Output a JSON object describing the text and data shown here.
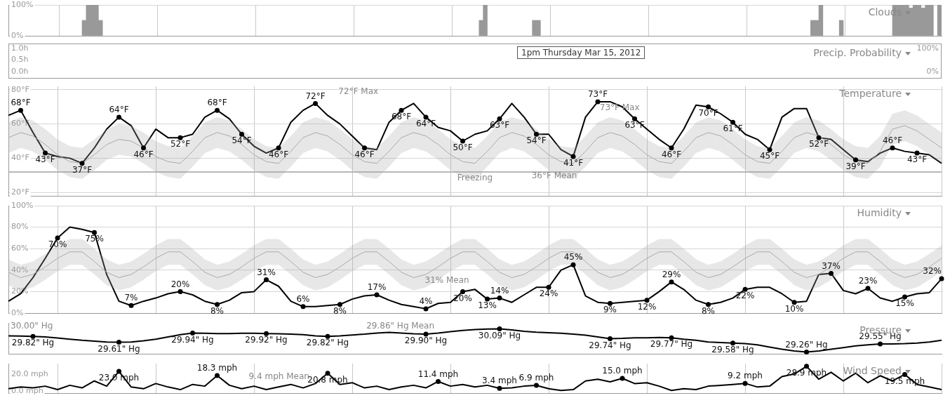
{
  "chart_data": [
    {
      "type": "bar",
      "title": "Clouds",
      "categories": [
        null,
        null,
        null,
        null,
        null,
        null,
        null,
        null,
        null,
        null,
        null,
        null,
        null,
        null,
        null,
        null,
        null,
        null,
        null,
        null,
        null,
        null,
        null,
        null,
        null,
        null,
        null,
        null,
        null,
        null,
        null,
        null,
        null,
        null,
        null,
        null,
        null,
        null,
        null,
        null,
        null,
        null,
        null,
        null,
        null,
        null,
        null,
        null,
        null,
        null,
        null,
        null,
        null,
        null,
        null,
        null,
        null,
        null,
        null,
        null,
        null,
        null,
        null,
        null,
        null,
        null,
        null,
        null,
        null,
        null,
        null,
        null,
        null,
        null,
        null,
        null,
        null,
        null,
        null,
        null,
        null,
        null,
        null,
        null,
        null,
        null,
        null,
        null,
        null,
        null,
        null,
        null,
        null,
        null,
        null,
        null,
        null,
        null,
        null,
        null,
        null,
        null,
        null,
        null,
        null,
        null,
        null,
        null,
        null,
        null,
        null,
        null,
        null,
        null,
        null,
        null,
        null,
        null,
        null,
        null,
        null,
        null,
        null,
        null,
        null,
        null,
        null,
        null,
        null,
        null,
        null,
        null,
        null,
        null,
        null,
        null,
        null,
        null,
        null,
        null,
        null,
        null,
        null,
        null,
        null,
        null,
        null,
        null,
        null,
        null,
        null,
        null,
        null,
        null,
        null,
        null,
        null,
        null,
        null,
        null,
        null,
        null,
        null,
        null,
        null,
        null,
        null,
        null,
        null,
        null,
        null,
        null,
        null,
        null,
        null,
        null,
        null,
        null,
        null,
        null,
        null,
        null,
        null,
        null,
        null,
        null,
        null,
        null,
        null,
        null,
        null,
        null,
        null,
        null,
        null,
        null,
        null,
        null,
        null,
        null,
        null,
        null,
        null,
        null,
        null,
        null,
        null,
        null,
        null,
        null,
        null,
        null,
        null,
        null,
        null,
        null,
        null,
        null,
        null,
        null,
        null,
        null,
        null,
        null,
        null,
        null,
        null,
        null
      ],
      "values": [
        0,
        0,
        0,
        0,
        0,
        0,
        0,
        0,
        0,
        0,
        0,
        0,
        0,
        0,
        0,
        0,
        0,
        0,
        50,
        100,
        100,
        100,
        50,
        0,
        0,
        0,
        0,
        0,
        0,
        0,
        0,
        0,
        0,
        0,
        0,
        0,
        0,
        0,
        0,
        0,
        0,
        0,
        0,
        0,
        0,
        0,
        0,
        0,
        0,
        0,
        0,
        0,
        0,
        0,
        0,
        0,
        0,
        0,
        0,
        0,
        0,
        0,
        0,
        0,
        0,
        0,
        0,
        0,
        0,
        0,
        0,
        0,
        0,
        0,
        0,
        0,
        0,
        0,
        0,
        0,
        0,
        0,
        0,
        0,
        0,
        0,
        0,
        0,
        0,
        0,
        0,
        0,
        0,
        0,
        0,
        0,
        0,
        0,
        0,
        0,
        0,
        0,
        0,
        0,
        0,
        0,
        0,
        0,
        0,
        0,
        0,
        0,
        0,
        0,
        0,
        50,
        100,
        0,
        0,
        0,
        0,
        0,
        0,
        0,
        0,
        0,
        0,
        0,
        50,
        50,
        0,
        0,
        0,
        0,
        0,
        0,
        0,
        0,
        0,
        0,
        0,
        0,
        0,
        0,
        0,
        0,
        0,
        0,
        0,
        0,
        0,
        0,
        0,
        0,
        0,
        0,
        0,
        0,
        0,
        0,
        0,
        0,
        0,
        0,
        0,
        0,
        0,
        0,
        0,
        0,
        0,
        0,
        0,
        0,
        0,
        0,
        0,
        0,
        0,
        0,
        0,
        0,
        0,
        0,
        0,
        0,
        0,
        0,
        0,
        0,
        0,
        0,
        0,
        0,
        0,
        0,
        50,
        50,
        100,
        0,
        0,
        0,
        0,
        50,
        0,
        0,
        0,
        0,
        0,
        0,
        0,
        0,
        0,
        0,
        0,
        0,
        100,
        100,
        100,
        100,
        90,
        100,
        100,
        90,
        100,
        100,
        0,
        100
      ],
      "color": "#999999",
      "ylim": [
        0,
        100
      ],
      "yticks": [
        {
          "value": 0,
          "label": "0%"
        },
        {
          "value": 100,
          "label": "100%"
        }
      ],
      "grid": true,
      "tick_labels": "y"
    },
    {
      "type": "other",
      "title": "Precip. Probability",
      "annotations": [
        "1.0h",
        "0.5h",
        "0.0h",
        "100%",
        "0%",
        "1pm Thursday Mar 15, 2012"
      ]
    },
    {
      "type": "line",
      "title": "Temperature",
      "categories": [
        null,
        null,
        null,
        null,
        null,
        null,
        null,
        null,
        null,
        null,
        null,
        null,
        null,
        null,
        null,
        null,
        null,
        null,
        null,
        null,
        null,
        null,
        null,
        null,
        null,
        null,
        null,
        null,
        null,
        null,
        null,
        null,
        null,
        null,
        null,
        null,
        null,
        null,
        null,
        null,
        null,
        null,
        null,
        null,
        null,
        null,
        null,
        null,
        null,
        null,
        null,
        null,
        null,
        null,
        null,
        null,
        null,
        null,
        null,
        null,
        null,
        null,
        null,
        null,
        null,
        null,
        null,
        null,
        null,
        null,
        null,
        null,
        null,
        null,
        null,
        null,
        null
      ],
      "series": [
        {
          "color": "#aaaaaa",
          "values": [
            52,
            55,
            53,
            48,
            42,
            38,
            37,
            42,
            48,
            51,
            50,
            46,
            41,
            38,
            37,
            44,
            52,
            55,
            53,
            48,
            42,
            38,
            37,
            44,
            52,
            55,
            53,
            48,
            42,
            38,
            37,
            44,
            52,
            55,
            53,
            48,
            42,
            38,
            37,
            44,
            52,
            55,
            53,
            48,
            42,
            38,
            37,
            44,
            52,
            55,
            53,
            48,
            42,
            38,
            37,
            44,
            52,
            55,
            53,
            48,
            42,
            38,
            37,
            44,
            52,
            55,
            53,
            48,
            42,
            38,
            37,
            44,
            57,
            59,
            56,
            51,
            46
          ],
          "lower": [
            43,
            46,
            44,
            39,
            33,
            29,
            28,
            33,
            39,
            42,
            41,
            37,
            32,
            29,
            28,
            35,
            43,
            46,
            44,
            39,
            33,
            29,
            28,
            35,
            43,
            46,
            44,
            39,
            33,
            29,
            28,
            35,
            43,
            46,
            44,
            39,
            33,
            29,
            28,
            35,
            43,
            46,
            44,
            39,
            33,
            29,
            28,
            35,
            43,
            46,
            44,
            39,
            33,
            29,
            28,
            35,
            43,
            46,
            44,
            39,
            33,
            29,
            28,
            35,
            43,
            46,
            44,
            39,
            33,
            29,
            28,
            35,
            48,
            50,
            47,
            42,
            37
          ],
          "upper": [
            61,
            64,
            62,
            57,
            51,
            47,
            46,
            51,
            57,
            60,
            59,
            55,
            50,
            47,
            46,
            53,
            61,
            64,
            62,
            57,
            51,
            47,
            46,
            53,
            61,
            64,
            62,
            57,
            51,
            47,
            46,
            53,
            61,
            64,
            62,
            57,
            51,
            47,
            46,
            53,
            61,
            64,
            62,
            57,
            51,
            47,
            46,
            53,
            61,
            64,
            62,
            57,
            51,
            47,
            46,
            53,
            61,
            64,
            62,
            57,
            51,
            47,
            46,
            53,
            61,
            64,
            62,
            57,
            51,
            47,
            46,
            53,
            66,
            68,
            65,
            60,
            55
          ]
        },
        {
          "color": "#000000",
          "values": [
            65,
            68,
            55,
            43,
            41,
            40,
            37,
            46,
            57,
            64,
            59,
            46,
            57,
            52,
            52,
            54,
            64,
            68,
            63,
            54,
            47,
            43,
            46,
            61,
            68,
            72,
            65,
            60,
            53,
            46,
            45,
            61,
            68,
            72,
            64,
            58,
            56,
            50,
            54,
            56,
            63,
            72,
            64,
            54,
            54,
            45,
            41,
            64,
            73,
            73,
            70,
            63,
            57,
            51,
            46,
            57,
            71,
            70,
            66,
            61,
            54,
            51,
            45,
            64,
            69,
            69,
            52,
            51,
            45,
            39,
            38,
            43,
            46,
            44,
            43,
            42,
            37
          ],
          "value_labels": [
            null,
            "68°F",
            null,
            "43°F",
            null,
            null,
            "37°F",
            null,
            null,
            "64°F",
            null,
            "46°F",
            null,
            null,
            "52°F",
            null,
            null,
            "68°F",
            null,
            "54°F",
            null,
            null,
            "46°F",
            null,
            null,
            "72°F",
            null,
            null,
            null,
            "46°F",
            null,
            null,
            "68°F",
            null,
            "64°F",
            null,
            null,
            "50°F",
            null,
            null,
            "63°F",
            null,
            null,
            "54°F",
            null,
            null,
            "41°F",
            null,
            "73°F",
            null,
            null,
            "63°F",
            null,
            null,
            "46°F",
            null,
            null,
            "70°F",
            null,
            "61°F",
            null,
            null,
            "45°F",
            null,
            null,
            null,
            "52°F",
            null,
            null,
            "39°F",
            null,
            null,
            "46°F",
            null,
            "43°F",
            null,
            null
          ]
        }
      ],
      "ylim": [
        18,
        82
      ],
      "yticks": [
        {
          "value": 20,
          "label": "20°F"
        },
        {
          "value": 40,
          "label": "40°F"
        },
        {
          "value": 60,
          "label": "60°F"
        },
        {
          "value": 80,
          "label": "80°F"
        }
      ],
      "grid": true,
      "tick_labels": "y",
      "ref_lines": [
        {
          "axis": "y",
          "value": 32,
          "label": "Freezing"
        }
      ],
      "annotations": [
        "72°F Max",
        "73°F Max",
        "36°F Mean"
      ]
    },
    {
      "type": "line",
      "title": "Humidity",
      "categories": [
        null,
        null,
        null,
        null,
        null,
        null,
        null,
        null,
        null,
        null,
        null,
        null,
        null,
        null,
        null,
        null,
        null,
        null,
        null,
        null,
        null,
        null,
        null,
        null,
        null,
        null,
        null,
        null,
        null,
        null,
        null,
        null,
        null,
        null,
        null,
        null,
        null,
        null,
        null,
        null,
        null,
        null,
        null,
        null,
        null,
        null,
        null,
        null,
        null,
        null,
        null,
        null,
        null,
        null,
        null,
        null,
        null,
        null,
        null,
        null,
        null,
        null,
        null,
        null,
        null,
        null,
        null,
        null,
        null,
        null,
        null,
        null,
        null,
        null,
        null,
        null,
        null
      ],
      "series": [
        {
          "color": "#aaaaaa",
          "values": [
            38,
            33,
            36,
            43,
            51,
            57,
            57,
            48,
            38,
            33,
            36,
            43,
            51,
            57,
            57,
            48,
            38,
            33,
            36,
            43,
            51,
            57,
            57,
            48,
            38,
            33,
            36,
            43,
            51,
            57,
            57,
            48,
            38,
            33,
            36,
            43,
            51,
            57,
            57,
            48,
            38,
            33,
            36,
            43,
            51,
            57,
            57,
            48,
            38,
            33,
            36,
            43,
            51,
            57,
            57,
            48,
            38,
            33,
            36,
            43,
            51,
            57,
            57,
            48,
            38,
            33,
            36,
            43,
            51,
            57,
            57,
            48,
            38,
            33,
            36,
            43,
            51
          ],
          "lower": [
            26,
            21,
            24,
            31,
            39,
            45,
            45,
            36,
            26,
            21,
            24,
            31,
            39,
            45,
            45,
            36,
            26,
            21,
            24,
            31,
            39,
            45,
            45,
            36,
            26,
            21,
            24,
            31,
            39,
            45,
            45,
            36,
            26,
            21,
            24,
            31,
            39,
            45,
            45,
            36,
            26,
            21,
            24,
            31,
            39,
            45,
            45,
            36,
            26,
            21,
            24,
            31,
            39,
            45,
            45,
            36,
            26,
            21,
            24,
            31,
            39,
            45,
            45,
            36,
            26,
            21,
            24,
            31,
            39,
            45,
            45,
            36,
            26,
            21,
            24,
            31,
            39
          ],
          "upper": [
            50,
            45,
            48,
            55,
            63,
            69,
            69,
            60,
            50,
            45,
            48,
            55,
            63,
            69,
            69,
            60,
            50,
            45,
            48,
            55,
            63,
            69,
            69,
            60,
            50,
            45,
            48,
            55,
            63,
            69,
            69,
            60,
            50,
            45,
            48,
            55,
            63,
            69,
            69,
            60,
            50,
            45,
            48,
            55,
            63,
            69,
            69,
            60,
            50,
            45,
            48,
            55,
            63,
            69,
            69,
            60,
            50,
            45,
            48,
            55,
            63,
            69,
            69,
            60,
            50,
            45,
            48,
            55,
            63,
            69,
            69,
            60,
            50,
            45,
            48,
            55,
            63
          ]
        },
        {
          "color": "#000000",
          "values": [
            11,
            18,
            33,
            51,
            70,
            80,
            78,
            75,
            36,
            11,
            7,
            11,
            14,
            18,
            20,
            17,
            11,
            8,
            12,
            19,
            20,
            31,
            25,
            11,
            6,
            6,
            7,
            8,
            13,
            16,
            17,
            12,
            8,
            6,
            4,
            9,
            10,
            20,
            22,
            13,
            14,
            10,
            17,
            24,
            24,
            40,
            45,
            16,
            10,
            9,
            10,
            11,
            12,
            20,
            29,
            22,
            12,
            8,
            10,
            14,
            22,
            24,
            24,
            18,
            10,
            11,
            36,
            37,
            21,
            18,
            23,
            14,
            11,
            15,
            18,
            19,
            32
          ],
          "value_labels": [
            null,
            null,
            null,
            null,
            "70%",
            null,
            null,
            "75%",
            null,
            null,
            "7%",
            null,
            null,
            null,
            "20%",
            null,
            null,
            "8%",
            null,
            null,
            null,
            "31%",
            null,
            null,
            "6%",
            null,
            null,
            "8%",
            null,
            null,
            "17%",
            null,
            null,
            null,
            "4%",
            null,
            null,
            "20%",
            null,
            "13%",
            "14%",
            null,
            null,
            null,
            "24%",
            null,
            "45%",
            null,
            null,
            "9%",
            null,
            null,
            "12%",
            null,
            "29%",
            null,
            null,
            "8%",
            null,
            null,
            "22%",
            null,
            null,
            null,
            "10%",
            null,
            null,
            "37%",
            null,
            null,
            "23%",
            null,
            null,
            "15%",
            null,
            null,
            "32%"
          ]
        }
      ],
      "ylim": [
        0,
        100
      ],
      "yticks": [
        {
          "value": 0,
          "label": "0%"
        },
        {
          "value": 20,
          "label": "20%"
        },
        {
          "value": 40,
          "label": "40%"
        },
        {
          "value": 60,
          "label": "60%"
        },
        {
          "value": 80,
          "label": "80%"
        },
        {
          "value": 100,
          "label": "100%"
        }
      ],
      "grid": true,
      "tick_labels": "y",
      "annotations": [
        "31% Mean"
      ]
    },
    {
      "type": "line",
      "title": "Pressure",
      "categories": [
        null,
        null,
        null,
        null,
        null,
        null,
        null,
        null,
        null,
        null,
        null,
        null,
        null,
        null,
        null,
        null,
        null,
        null,
        null,
        null,
        null,
        null,
        null,
        null,
        null,
        null,
        null,
        null,
        null,
        null,
        null,
        null,
        null,
        null,
        null,
        null,
        null,
        null,
        null,
        null,
        null,
        null,
        null,
        null,
        null,
        null,
        null,
        null,
        null,
        null,
        null,
        null,
        null,
        null,
        null,
        null,
        null,
        null,
        null,
        null,
        null,
        null,
        null,
        null,
        null,
        null,
        null,
        null,
        null,
        null,
        null,
        null,
        null,
        null,
        null,
        null,
        null
      ],
      "series": [
        {
          "color": "#000000",
          "values": [
            29.84,
            29.83,
            29.82,
            29.8,
            29.76,
            29.72,
            29.68,
            29.65,
            29.62,
            29.61,
            29.62,
            29.66,
            29.72,
            29.8,
            29.88,
            29.94,
            29.93,
            29.92,
            29.92,
            29.93,
            29.93,
            29.92,
            29.91,
            29.9,
            29.88,
            29.84,
            29.82,
            29.84,
            29.87,
            29.9,
            29.94,
            29.96,
            29.94,
            29.91,
            29.9,
            29.94,
            29.99,
            30.03,
            30.06,
            30.08,
            30.09,
            30.05,
            30,
            29.97,
            29.95,
            29.93,
            29.9,
            29.86,
            29.8,
            29.74,
            29.75,
            29.77,
            29.77,
            29.78,
            29.77,
            29.72,
            29.68,
            29.62,
            29.6,
            29.58,
            29.56,
            29.52,
            29.44,
            29.36,
            29.3,
            29.26,
            29.3,
            29.36,
            29.42,
            29.48,
            29.52,
            29.55,
            29.55,
            29.56,
            29.58,
            29.62,
            29.68
          ],
          "value_labels": [
            null,
            null,
            "29.82\" Hg",
            null,
            null,
            null,
            null,
            null,
            null,
            "29.61\" Hg",
            null,
            null,
            null,
            null,
            null,
            "29.94\" Hg",
            null,
            null,
            null,
            null,
            null,
            "29.92\" Hg",
            null,
            null,
            null,
            null,
            "29.82\" Hg",
            null,
            null,
            null,
            null,
            null,
            null,
            null,
            "29.90\" Hg",
            null,
            null,
            null,
            null,
            null,
            "30.09\" Hg",
            null,
            null,
            null,
            null,
            null,
            null,
            null,
            null,
            "29.74\" Hg",
            null,
            null,
            null,
            null,
            "29.77\" Hg",
            null,
            null,
            null,
            null,
            "29.58\" Hg",
            null,
            null,
            null,
            null,
            null,
            "29.26\" Hg",
            null,
            null,
            null,
            null,
            null,
            "29.55\" Hg",
            null,
            null,
            null,
            null,
            null
          ]
        }
      ],
      "ylim": [
        29.2,
        30.3
      ],
      "tick_labels": false,
      "annotations": [
        "30.00\" Hg",
        "29.86\" Hg Mean"
      ]
    },
    {
      "type": "line",
      "title": "Wind Speed",
      "categories": [
        null,
        null,
        null,
        null,
        null,
        null,
        null,
        null,
        null,
        null,
        null,
        null,
        null,
        null,
        null,
        null,
        null,
        null,
        null,
        null,
        null,
        null,
        null,
        null,
        null,
        null,
        null,
        null,
        null,
        null,
        null,
        null,
        null,
        null,
        null,
        null,
        null,
        null,
        null,
        null,
        null,
        null,
        null,
        null,
        null,
        null,
        null,
        null,
        null,
        null,
        null,
        null,
        null,
        null,
        null,
        null,
        null,
        null,
        null,
        null,
        null,
        null,
        null,
        null,
        null,
        null,
        null,
        null,
        null,
        null,
        null,
        null,
        null,
        null,
        null,
        null,
        null
      ],
      "series": [
        {
          "color": "#000000",
          "values": [
            3,
            5,
            4,
            6,
            2,
            7,
            4,
            12,
            6,
            23.0,
            5,
            3,
            9,
            5,
            2,
            8,
            6,
            18.3,
            7,
            3,
            6,
            2,
            5,
            8,
            4,
            9,
            20.8,
            8,
            10,
            4,
            6,
            2,
            5,
            7,
            4,
            11.4,
            6,
            8,
            5,
            7,
            3.4,
            4,
            6,
            6.9,
            3,
            1,
            2,
            12,
            14,
            11,
            15.0,
            9,
            10,
            6,
            1,
            3,
            2,
            6,
            7,
            8,
            9.2,
            5,
            6,
            17,
            20,
            28.9,
            14,
            22,
            12,
            21,
            10,
            18,
            12,
            19.5,
            8,
            5,
            2
          ],
          "value_labels": [
            null,
            null,
            null,
            null,
            null,
            null,
            null,
            null,
            null,
            "23.0 mph",
            null,
            null,
            null,
            null,
            null,
            null,
            null,
            "18.3 mph",
            null,
            null,
            null,
            null,
            null,
            null,
            null,
            null,
            "20.8 mph",
            null,
            null,
            null,
            null,
            null,
            null,
            null,
            null,
            "11.4 mph",
            null,
            null,
            null,
            null,
            "3.4 mph",
            null,
            null,
            "6.9 mph",
            null,
            null,
            null,
            null,
            null,
            null,
            "15.0 mph",
            null,
            null,
            null,
            null,
            null,
            null,
            null,
            null,
            null,
            "9.2 mph",
            null,
            null,
            null,
            null,
            "28.9 mph",
            null,
            null,
            null,
            null,
            null,
            null,
            null,
            "19.5 mph",
            null,
            null,
            null
          ]
        }
      ],
      "ylim": [
        -2,
        32
      ],
      "yticks": [
        {
          "value": 0,
          "label": "0.0 mph"
        },
        {
          "value": 20,
          "label": "20.0 mph"
        }
      ],
      "grid": "x",
      "tick_labels": "y",
      "annotations": [
        "9.4 mph Mean"
      ]
    }
  ]
}
